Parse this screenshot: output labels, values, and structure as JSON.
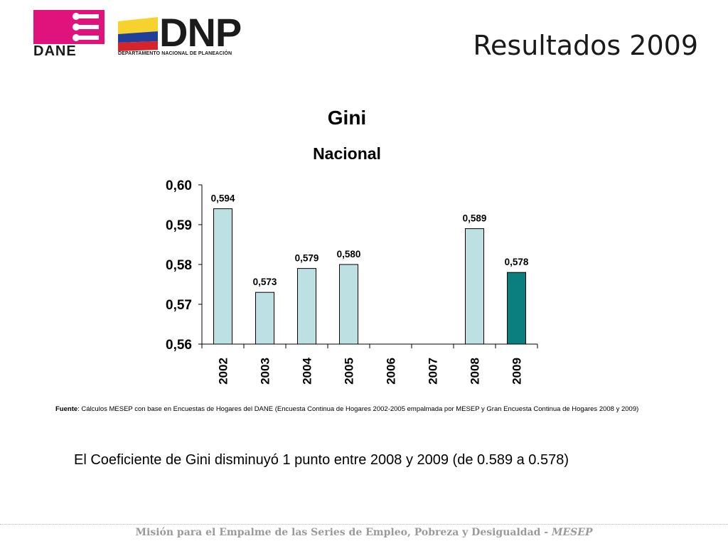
{
  "header": {
    "dane_logo_text": "DANE",
    "dnp_logo_text": "DNP",
    "dnp_logo_subtitle": "DEPARTAMENTO NACIONAL DE PLANEACIÓN",
    "page_title": "Resultados 2009"
  },
  "chart_data": {
    "type": "bar",
    "title": "Gini",
    "subtitle": "Nacional",
    "categories": [
      "2002",
      "2003",
      "2004",
      "2005",
      "2006",
      "2007",
      "2008",
      "2009"
    ],
    "values": [
      0.594,
      0.573,
      0.579,
      0.58,
      null,
      null,
      0.589,
      0.578
    ],
    "data_labels": [
      "0,594",
      "0,573",
      "0,579",
      "0,580",
      "",
      "",
      "0,589",
      "0,578"
    ],
    "y_ticks": [
      0.56,
      0.57,
      0.58,
      0.59,
      0.6
    ],
    "y_tick_labels": [
      "0,56",
      "0,57",
      "0,58",
      "0,59",
      "0,60"
    ],
    "ylim": [
      0.56,
      0.6
    ],
    "grid": false,
    "colors": {
      "default_bar": "#bde0e3",
      "highlight_bar": "#0b7f80",
      "highlight_category": "2009",
      "bar_stroke": "#000000"
    }
  },
  "source": {
    "label": "Fuente",
    "text": ": Cálculos MESEP con base en Encuestas de Hogares del DANE (Encuesta Continua de Hogares 2002-2005 empalmada por MESEP y Gran Encuesta Continua de Hogares 2008 y 2009)"
  },
  "conclusion": "El Coeficiente de Gini disminuyó 1 punto entre 2008 y 2009 (de 0.589 a 0.578)",
  "footer": {
    "text": "Misión para el Empalme de las Series de Empleo, Pobreza y Desigualdad - ",
    "acronym": "MESEP"
  }
}
